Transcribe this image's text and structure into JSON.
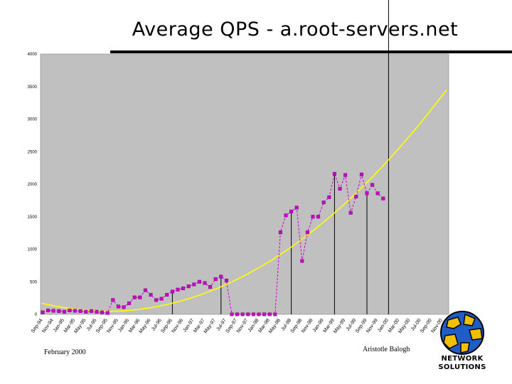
{
  "slide": {
    "title": "Average QPS - a.root-servers.net",
    "footer_left": "February 2000",
    "footer_right": "Aristotle Balogh",
    "logo_line1": "NETWORK",
    "logo_line2": "SOLUTIONS"
  },
  "colors": {
    "plot_bg": "#c0c0c0",
    "series": "#cc00cc",
    "trend": "#ffff00",
    "drop_lines": "#000000"
  },
  "chart_data": {
    "type": "line",
    "title": "Average QPS - a.root-servers.net",
    "xlabel": "",
    "ylabel": "",
    "ylim": [
      0,
      4000
    ],
    "yticks": [
      0,
      500,
      1000,
      1500,
      2000,
      2500,
      3000,
      3500,
      4000
    ],
    "grid": false,
    "legend": "none",
    "x_tick_labels": [
      "Sep-94",
      "Nov-94",
      "Jan-95",
      "Mar-95",
      "May-95",
      "Jul-95",
      "Sep-95",
      "Nov-95",
      "Jan-96",
      "Mar-96",
      "May-96",
      "Jul-96",
      "Sep-96",
      "Nov-96",
      "Jan-97",
      "Mar-97",
      "May-97",
      "Jul-97",
      "Sep-97",
      "Nov-97",
      "Jan-98",
      "Mar-98",
      "May-98",
      "Jul-98",
      "Sep-98",
      "Nov-98",
      "Jan-99",
      "Mar-99",
      "May-99",
      "Jul-99",
      "Sep-99",
      "Nov-99",
      "Jan-00",
      "Mar-00",
      "May-00",
      "Jul-00",
      "Sep-00",
      "Nov-00"
    ],
    "series": [
      {
        "values": [
          30,
          60,
          55,
          50,
          40,
          60,
          55,
          50,
          40,
          50,
          40,
          30,
          20,
          220,
          120,
          110,
          170,
          260,
          260,
          370,
          300,
          220,
          240,
          300,
          350,
          380,
          400,
          430,
          460,
          500,
          480,
          420,
          540,
          580,
          520,
          0,
          0,
          0,
          0,
          0,
          0,
          0,
          0,
          0,
          1260,
          1520,
          1580,
          1640,
          820,
          1260,
          1500,
          1500,
          1720,
          1800,
          2160,
          1930,
          2140,
          1560,
          1810,
          2150,
          1860,
          1990,
          1860,
          1780
        ]
      },
      {
        "values": [
          170,
          157,
          144,
          132,
          121,
          110,
          100,
          91,
          82,
          75,
          68,
          62,
          57,
          53,
          50,
          48,
          47,
          47,
          48,
          50,
          53,
          57,
          62,
          68,
          75,
          83,
          92,
          102,
          113,
          125,
          138,
          151,
          166,
          181,
          197,
          215,
          233,
          252,
          272,
          293,
          316,
          339,
          363,
          388,
          414,
          441,
          469,
          498,
          528,
          559,
          591,
          623,
          657,
          692,
          728,
          764,
          802,
          841,
          880,
          921,
          963,
          1005,
          1049,
          1094,
          1139,
          1186,
          1234,
          1282,
          1332,
          1383,
          1434,
          1487,
          1540,
          1595,
          1651,
          1707,
          1765,
          1823,
          1883,
          1943,
          2005,
          2068,
          2131,
          2196,
          2261,
          2328,
          2396,
          2465,
          2534,
          2605,
          2677,
          2749,
          2823,
          2898,
          2974,
          3051,
          3129,
          3208,
          3288,
          3369,
          3450
        ]
      }
    ],
    "drop_lines_at_month_index": [
      24,
      33,
      41,
      46,
      54,
      60,
      64
    ]
  }
}
